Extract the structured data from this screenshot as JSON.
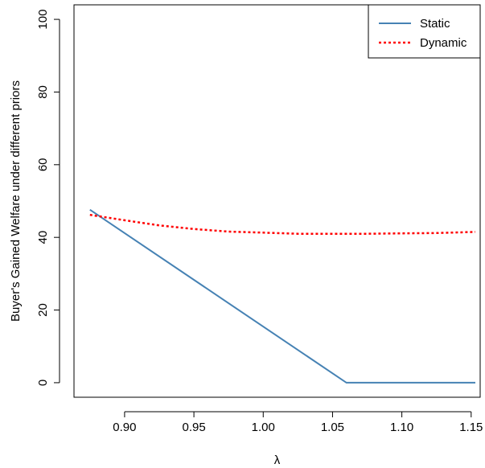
{
  "chart_data": {
    "type": "line",
    "title": "",
    "xlabel": "λ",
    "ylabel": "Buyer's  Gained Welfare under different priors",
    "xlim": [
      0.8635,
      1.1565
    ],
    "ylim": [
      -4,
      104
    ],
    "x_ticks": [
      0.9,
      0.95,
      1.0,
      1.05,
      1.1,
      1.15
    ],
    "x_tick_labels": [
      "0.90",
      "0.95",
      "1.00",
      "1.05",
      "1.10",
      "1.15"
    ],
    "y_ticks": [
      0,
      20,
      40,
      60,
      80,
      100
    ],
    "y_tick_labels": [
      "0",
      "20",
      "40",
      "60",
      "80",
      "100"
    ],
    "legend_position": "top-right",
    "series": [
      {
        "name": "Static",
        "color": "#4682B4",
        "style": "solid",
        "x": [
          0.875,
          1.06,
          1.153
        ],
        "y": [
          47.6,
          0,
          0
        ]
      },
      {
        "name": "Dynamic",
        "color": "#FF0000",
        "style": "dotted",
        "x": [
          0.875,
          0.9,
          0.925,
          0.95,
          0.975,
          1.0,
          1.025,
          1.05,
          1.075,
          1.1,
          1.125,
          1.153
        ],
        "y": [
          46.2,
          44.7,
          43.3,
          42.3,
          41.6,
          41.3,
          41.0,
          41.0,
          41.0,
          41.1,
          41.2,
          41.5
        ]
      }
    ]
  }
}
